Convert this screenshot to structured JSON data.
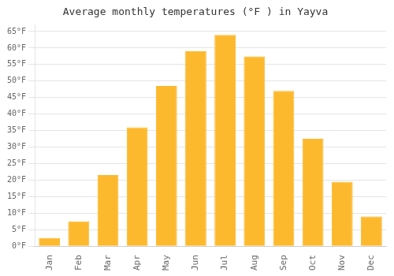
{
  "chart_data": {
    "type": "bar",
    "title": "Average monthly temperatures (°F ) in Yayva",
    "categories": [
      "Jan",
      "Feb",
      "Mar",
      "Apr",
      "May",
      "Jun",
      "Jul",
      "Aug",
      "Sep",
      "Oct",
      "Nov",
      "Dec"
    ],
    "values": [
      2.5,
      7.5,
      21.5,
      36,
      48.5,
      59,
      64,
      57.5,
      47,
      32.5,
      19.5,
      9
    ],
    "color": "#FDB92E",
    "ylim": [
      0,
      67
    ],
    "yticks": [
      {
        "value": 0,
        "label": "0°F"
      },
      {
        "value": 5,
        "label": "5°F"
      },
      {
        "value": 10,
        "label": "10°F"
      },
      {
        "value": 15,
        "label": "15°F"
      },
      {
        "value": 20,
        "label": "20°F"
      },
      {
        "value": 25,
        "label": "25°F"
      },
      {
        "value": 30,
        "label": "30°F"
      },
      {
        "value": 35,
        "label": "35°F"
      },
      {
        "value": 40,
        "label": "40°F"
      },
      {
        "value": 45,
        "label": "45°F"
      },
      {
        "value": 50,
        "label": "50°F"
      },
      {
        "value": 55,
        "label": "55°F"
      },
      {
        "value": 60,
        "label": "60°F"
      },
      {
        "value": 65,
        "label": "65°F"
      }
    ],
    "grid": true
  }
}
